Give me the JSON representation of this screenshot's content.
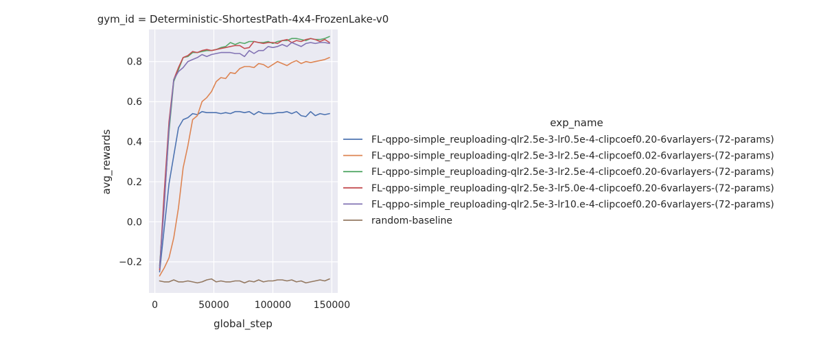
{
  "chart_data": {
    "type": "line",
    "title": "gym_id = Deterministic-ShortestPath-4x4-FrozenLake-v0",
    "xlabel": "global_step",
    "ylabel": "avg_rewards",
    "xlim": [
      -5000,
      155000
    ],
    "ylim": [
      -0.355,
      0.96
    ],
    "xticks": [
      0,
      50000,
      100000,
      150000
    ],
    "xtick_labels": [
      "0",
      "50000",
      "100000",
      "150000"
    ],
    "yticks": [
      -0.2,
      0.0,
      0.2,
      0.4,
      0.6,
      0.8
    ],
    "ytick_labels": [
      "−0.2",
      "0.0",
      "0.2",
      "0.4",
      "0.6",
      "0.8"
    ],
    "grid": true,
    "legend_title": "exp_name",
    "legend_placement": "right",
    "background": "#eaeaf2",
    "x": [
      4000,
      8000,
      12000,
      16000,
      20000,
      24000,
      28000,
      32000,
      36000,
      40000,
      44000,
      48000,
      52000,
      56000,
      60000,
      64000,
      68000,
      72000,
      76000,
      80000,
      84000,
      88000,
      92000,
      96000,
      100000,
      104000,
      108000,
      112000,
      116000,
      120000,
      124000,
      128000,
      132000,
      136000,
      140000,
      144000,
      148000
    ],
    "series": [
      {
        "name": "FL-qppo-simple_reuploading-qlr2.5e-3-lr0.5e-4-clipcoef0.20-6varlayers-(72-params)",
        "color": "#4c72b0",
        "values": [
          -0.25,
          -0.03,
          0.19,
          0.33,
          0.47,
          0.51,
          0.52,
          0.54,
          0.535,
          0.55,
          0.545,
          0.545,
          0.545,
          0.54,
          0.545,
          0.54,
          0.55,
          0.55,
          0.545,
          0.55,
          0.535,
          0.55,
          0.54,
          0.54,
          0.54,
          0.545,
          0.545,
          0.55,
          0.54,
          0.55,
          0.53,
          0.525,
          0.55,
          0.53,
          0.54,
          0.535,
          0.54
        ]
      },
      {
        "name": "FL-qppo-simple_reuploading-qlr2.5e-3-lr2.5e-4-clipcoef0.02-6varlayers-(72-params)",
        "color": "#dd8452",
        "values": [
          -0.27,
          -0.23,
          -0.18,
          -0.08,
          0.07,
          0.27,
          0.38,
          0.51,
          0.53,
          0.6,
          0.62,
          0.65,
          0.7,
          0.72,
          0.715,
          0.745,
          0.74,
          0.765,
          0.775,
          0.775,
          0.77,
          0.79,
          0.785,
          0.77,
          0.785,
          0.8,
          0.79,
          0.78,
          0.795,
          0.805,
          0.79,
          0.8,
          0.795,
          0.8,
          0.805,
          0.81,
          0.82
        ]
      },
      {
        "name": "FL-qppo-simple_reuploading-qlr2.5e-3-lr2.5e-4-clipcoef0.20-6varlayers-(72-params)",
        "color": "#55a868",
        "values": [
          -0.22,
          0.1,
          0.45,
          0.7,
          0.76,
          0.82,
          0.825,
          0.845,
          0.845,
          0.85,
          0.855,
          0.855,
          0.86,
          0.87,
          0.875,
          0.895,
          0.885,
          0.895,
          0.89,
          0.9,
          0.9,
          0.895,
          0.895,
          0.9,
          0.89,
          0.9,
          0.905,
          0.905,
          0.915,
          0.915,
          0.91,
          0.905,
          0.915,
          0.91,
          0.91,
          0.915,
          0.925
        ]
      },
      {
        "name": "FL-qppo-simple_reuploading-qlr2.5e-3-lr5.0e-4-clipcoef0.20-6varlayers-(72-params)",
        "color": "#c44e52",
        "values": [
          -0.24,
          0.15,
          0.5,
          0.71,
          0.77,
          0.82,
          0.83,
          0.85,
          0.845,
          0.855,
          0.86,
          0.855,
          0.86,
          0.865,
          0.87,
          0.875,
          0.88,
          0.88,
          0.865,
          0.87,
          0.9,
          0.895,
          0.89,
          0.895,
          0.895,
          0.89,
          0.905,
          0.91,
          0.895,
          0.905,
          0.9,
          0.91,
          0.915,
          0.91,
          0.9,
          0.91,
          0.895
        ]
      },
      {
        "name": "FL-qppo-simple_reuploading-qlr2.5e-3-lr10.e-4-clipcoef0.20-6varlayers-(72-params)",
        "color": "#8172b3",
        "values": [
          -0.23,
          0.08,
          0.47,
          0.71,
          0.75,
          0.77,
          0.8,
          0.81,
          0.82,
          0.835,
          0.825,
          0.835,
          0.84,
          0.845,
          0.845,
          0.845,
          0.84,
          0.84,
          0.825,
          0.855,
          0.84,
          0.855,
          0.855,
          0.875,
          0.87,
          0.875,
          0.885,
          0.875,
          0.895,
          0.885,
          0.875,
          0.89,
          0.895,
          0.89,
          0.895,
          0.895,
          0.89
        ]
      },
      {
        "name": "random-baseline",
        "color": "#937860",
        "values": [
          -0.295,
          -0.3,
          -0.3,
          -0.29,
          -0.3,
          -0.3,
          -0.295,
          -0.3,
          -0.305,
          -0.3,
          -0.29,
          -0.285,
          -0.3,
          -0.295,
          -0.3,
          -0.3,
          -0.295,
          -0.295,
          -0.305,
          -0.295,
          -0.3,
          -0.29,
          -0.3,
          -0.295,
          -0.295,
          -0.29,
          -0.29,
          -0.295,
          -0.29,
          -0.3,
          -0.295,
          -0.305,
          -0.3,
          -0.295,
          -0.29,
          -0.295,
          -0.285
        ]
      }
    ]
  }
}
